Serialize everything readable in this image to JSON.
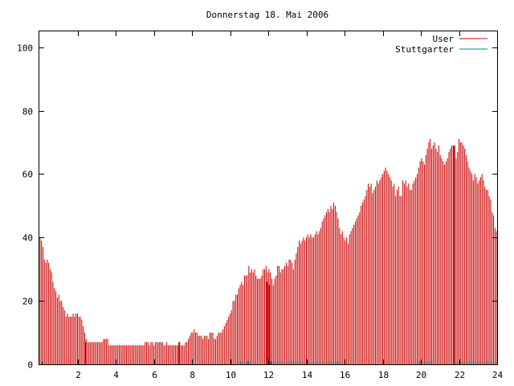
{
  "chart_data": {
    "type": "bar",
    "title": "Donnerstag 18. Mai 2006",
    "xlabel": "",
    "ylabel": "",
    "xlim": [
      0,
      24
    ],
    "ylim": [
      0,
      105
    ],
    "xticks": [
      2,
      4,
      6,
      8,
      10,
      12,
      14,
      16,
      18,
      20,
      22,
      24
    ],
    "yticks": [
      0,
      20,
      40,
      60,
      80,
      100
    ],
    "grid": false,
    "legend_position": "top-right",
    "colors": {
      "User": "#cc0000",
      "Stuttgarter": "#008b8b"
    },
    "series": [
      {
        "name": "User",
        "style": "impulses",
        "values": [
          40,
          39,
          37,
          33,
          32,
          33,
          32,
          30,
          29,
          26,
          24,
          23,
          21,
          22,
          20,
          20,
          18,
          17,
          15,
          16,
          15,
          15,
          15,
          16,
          15,
          16,
          16,
          15,
          15,
          14,
          12,
          10,
          8,
          7,
          7,
          7,
          7,
          7,
          7,
          7,
          7,
          7,
          7,
          7,
          8,
          8,
          8,
          8,
          6,
          6,
          6,
          6,
          6,
          6,
          6,
          6,
          6,
          6,
          6,
          6,
          6,
          6,
          6,
          6,
          6,
          6,
          6,
          6,
          6,
          6,
          6,
          6,
          6,
          7,
          7,
          7,
          6,
          7,
          7,
          6,
          7,
          7,
          7,
          7,
          7,
          7,
          6,
          6,
          7,
          6,
          6,
          6,
          6,
          6,
          6,
          6,
          6,
          6,
          6,
          6,
          6,
          7,
          7,
          8,
          9,
          10,
          10,
          11,
          10,
          10,
          9,
          9,
          9,
          8,
          9,
          9,
          9,
          8,
          10,
          10,
          10,
          8,
          8,
          9,
          10,
          10,
          10,
          11,
          12,
          13,
          14,
          15,
          16,
          17,
          20,
          20,
          22,
          22,
          24,
          25,
          26,
          25,
          28,
          28,
          28,
          31,
          29,
          30,
          29,
          30,
          28,
          27,
          27,
          27,
          28,
          30,
          30,
          31,
          29,
          30,
          29,
          27,
          25,
          27,
          28,
          31,
          31,
          29,
          30,
          30,
          31,
          32,
          31,
          33,
          33,
          32,
          30,
          33,
          35,
          37,
          39,
          38,
          39,
          40,
          39,
          40,
          41,
          40,
          41,
          40,
          40,
          41,
          42,
          41,
          42,
          43,
          45,
          46,
          47,
          48,
          49,
          48,
          50,
          49,
          51,
          50,
          48,
          46,
          43,
          41,
          42,
          40,
          39,
          40,
          38,
          41,
          42,
          43,
          44,
          45,
          46,
          47,
          48,
          50,
          51,
          52,
          53,
          55,
          57,
          56,
          57,
          54,
          55,
          56,
          58,
          57,
          58,
          59,
          60,
          61,
          62,
          61,
          60,
          59,
          58,
          56,
          57,
          53,
          55,
          56,
          53,
          53,
          58,
          57,
          58,
          56,
          57,
          55,
          55,
          57,
          58,
          59,
          60,
          62,
          64,
          65,
          64,
          63,
          66,
          68,
          70,
          71,
          68,
          69,
          70,
          68,
          67,
          69,
          66,
          65,
          64,
          63,
          64,
          65,
          67,
          68,
          69,
          69,
          68,
          65,
          67,
          71,
          70,
          70,
          69,
          68,
          66,
          64,
          62,
          61,
          60,
          58,
          60,
          59,
          57,
          58,
          59,
          60,
          58,
          56,
          55,
          55,
          53,
          52,
          48,
          47,
          43,
          42
        ]
      },
      {
        "name": "Stuttgarter",
        "style": "impulses",
        "events": [
          {
            "x": 0.12,
            "y": 1
          },
          {
            "x": 0.15,
            "y": 1
          },
          {
            "x": 2.42,
            "y": 7
          },
          {
            "x": 7.33,
            "y": 7
          },
          {
            "x": 10.55,
            "y": 1
          },
          {
            "x": 10.95,
            "y": 1
          },
          {
            "x": 11.95,
            "y": 26
          },
          {
            "x": 12.05,
            "y": 25
          },
          {
            "x": 12.15,
            "y": 1
          },
          {
            "x": 15.65,
            "y": 1
          },
          {
            "x": 19.9,
            "y": 1
          },
          {
            "x": 20.5,
            "y": 1
          },
          {
            "x": 21.75,
            "y": 69
          },
          {
            "x": 22.6,
            "y": 1
          }
        ]
      }
    ]
  }
}
